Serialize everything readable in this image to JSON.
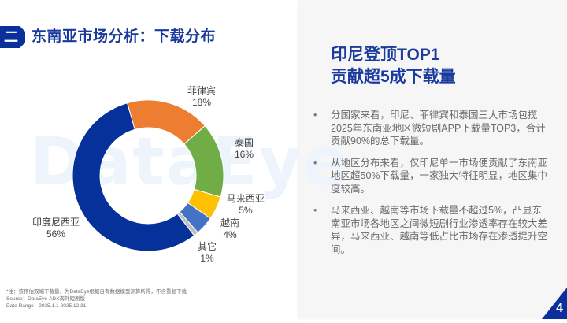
{
  "header": {
    "section_number": "二",
    "title": "东南亚市场分析：下载分布"
  },
  "watermark": "DataEye",
  "chart_data": {
    "type": "pie",
    "subtype": "donut",
    "title": "",
    "categories": [
      "菲律宾",
      "泰国",
      "马来西亚",
      "越南",
      "其它",
      "印度尼西亚"
    ],
    "values": [
      18,
      16,
      5,
      4,
      1,
      56
    ],
    "unit": "%",
    "colors": [
      "#ed7d31",
      "#70ad47",
      "#ffc000",
      "#4472c4",
      "#bfbfbf",
      "#06309a"
    ],
    "start_angle_deg": -16,
    "direction": "clockwise",
    "labels": [
      {
        "name": "菲律宾",
        "value": "18%"
      },
      {
        "name": "泰国",
        "value": "16%"
      },
      {
        "name": "马来西亚",
        "value": "5%"
      },
      {
        "name": "越南",
        "value": "4%"
      },
      {
        "name": "其它",
        "value": "1%"
      },
      {
        "name": "印度尼西亚",
        "value": "56%"
      }
    ],
    "legend": "none (data labels outside slices)"
  },
  "footnotes": {
    "note": "*注：该预估双端下载量，为DataEye根据自有数据模型测算所得，不含重复下载",
    "source": "Source：DataEye-ADX海外短剧版",
    "date_range": "Date Range：2025.1.1-2025.12.31"
  },
  "side": {
    "headline_line1": "印尼登顶TOP1",
    "headline_line2": "贡献超5成下载量",
    "bullet_glyph": "•",
    "bullets": [
      "分国家来看，印尼、菲律宾和泰国三大市场包揽2025年东南亚地区微短剧APP下载量TOP3，合计贡献90%的总下载量。",
      "从地区分布来看，仅印尼单一市场便贡献了东南亚地区超50%下载量，一家独大特征明显，地区集中度较高。",
      "马来西亚、越南等市场下载量不超过5%，凸显东南亚市场各地区之间微短剧行业渗透率存在较大差异，马来西亚、越南等低占比市场存在渗透提升空间。"
    ]
  },
  "page": {
    "number": "4",
    "accent_color": "#1a3a9e"
  }
}
